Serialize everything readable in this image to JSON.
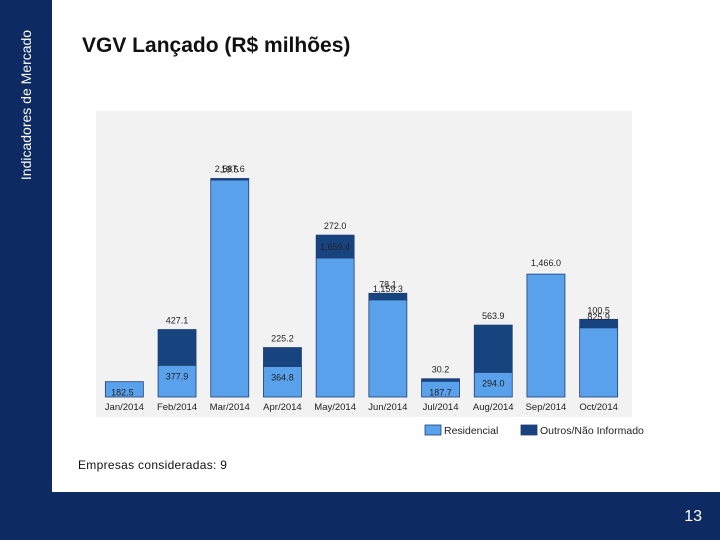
{
  "sidebar": {
    "title": "Indicadores de Mercado"
  },
  "slide": {
    "title": "VGV Lançado (R$ milhões)",
    "note": "Empresas consideradas: 9",
    "page": "13"
  },
  "colors": {
    "navy": "#0d2a63",
    "residencial": "#5aa1ec",
    "outros": "#17447f",
    "bar_border": "#1d3f78",
    "chart_bg": "#f2f2f2"
  },
  "chart_data": {
    "type": "bar",
    "stacked": true,
    "title": "VGV Lançado (R$ milhões)",
    "xlabel": "",
    "ylabel": "",
    "ylim": [
      0,
      3400
    ],
    "categories": [
      "Jan/2014",
      "Feb/2014",
      "Mar/2014",
      "Apr/2014",
      "May/2014",
      "Jun/2014",
      "Jul/2014",
      "Aug/2014",
      "Sep/2014",
      "Oct/2014"
    ],
    "series": [
      {
        "name": "Residencial",
        "values": [
          182.5,
          377.9,
          2587.6,
          364.8,
          1659.4,
          1159.3,
          187.7,
          294.0,
          1466.0,
          825.9
        ],
        "labels": [
          "182.5",
          "377.9",
          "2,587.6",
          "364.8",
          "1,659.4",
          "1,159.3",
          "187.7",
          "294.0",
          "1,466.0",
          "825.9"
        ]
      },
      {
        "name": "Outros/Não Informado",
        "values": [
          0,
          427.1,
          19.5,
          225.2,
          272.0,
          78.1,
          30.2,
          563.9,
          0,
          100.5
        ],
        "labels": [
          "",
          "427.1",
          "19.5",
          "225.2",
          "272.0",
          "78.1",
          "30.2",
          "563.9",
          "",
          "100.5"
        ]
      }
    ],
    "legend": {
      "position": "bottom-right"
    }
  }
}
